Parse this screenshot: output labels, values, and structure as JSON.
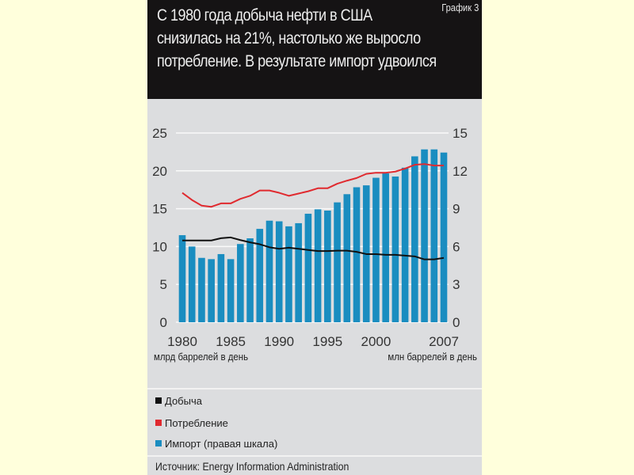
{
  "header": {
    "chart_number": "График 3",
    "title_lines": [
      "С 1980 года добыча нефти в США",
      "снизилась на 21%, настолько же выросло",
      "потребление. В результате импорт удвоился"
    ]
  },
  "units": {
    "left": "млрд баррелей в день",
    "right": "млн баррелей в день"
  },
  "legend": [
    {
      "label": "Добыча",
      "color": "#111111"
    },
    {
      "label": "Потребление",
      "color": "#E02A2F"
    },
    {
      "label": "Импорт (правая шкала)",
      "color": "#1A8DC0"
    }
  ],
  "source": "Источник: Energy Information Administration",
  "chart_data": {
    "type": "bar+line",
    "title": "С 1980 года добыча нефти в США снизилась на 21%, настолько же выросло потребление. В результате импорт удвоился",
    "x": [
      1980,
      1981,
      1982,
      1983,
      1984,
      1985,
      1986,
      1987,
      1988,
      1989,
      1990,
      1991,
      1992,
      1993,
      1994,
      1995,
      1996,
      1997,
      1998,
      1999,
      2000,
      2001,
      2002,
      2003,
      2004,
      2005,
      2006,
      2007
    ],
    "x_tick_labels": [
      "1980",
      "1985",
      "1990",
      "1995",
      "2000",
      "2007"
    ],
    "x_tick_values": [
      1980,
      1985,
      1990,
      1995,
      2000,
      2007
    ],
    "left_axis": {
      "label": "млрд баррелей в день",
      "ylim": [
        0,
        25
      ],
      "ticks": [
        "0",
        "5",
        "10",
        "15",
        "20",
        "25"
      ]
    },
    "right_axis": {
      "label": "млн баррелей в день",
      "ylim": [
        0,
        15
      ],
      "ticks": [
        "0",
        "3",
        "6",
        "9",
        "12",
        "15"
      ]
    },
    "grid": true,
    "legend_position": "bottom",
    "series": [
      {
        "name": "Добыча",
        "type": "line",
        "axis": "left",
        "color": "#111111",
        "values": [
          10.8,
          10.8,
          10.8,
          10.8,
          11.1,
          11.2,
          10.85,
          10.55,
          10.3,
          9.9,
          9.7,
          9.85,
          9.7,
          9.55,
          9.4,
          9.4,
          9.45,
          9.45,
          9.3,
          9.0,
          9.0,
          8.9,
          8.9,
          8.8,
          8.7,
          8.3,
          8.3,
          8.5
        ]
      },
      {
        "name": "Потребление",
        "type": "line",
        "axis": "left",
        "color": "#E02A2F",
        "values": [
          17.1,
          16.15,
          15.4,
          15.25,
          15.7,
          15.7,
          16.3,
          16.7,
          17.4,
          17.4,
          17.1,
          16.7,
          17.0,
          17.3,
          17.7,
          17.7,
          18.3,
          18.7,
          19.05,
          19.6,
          19.75,
          19.75,
          19.9,
          20.3,
          20.8,
          20.9,
          20.7,
          20.7
        ]
      },
      {
        "name": "Импорт (правая шкала)",
        "type": "bar",
        "axis": "right",
        "color": "#1A8DC0",
        "values": [
          6.9,
          6.0,
          5.1,
          5.0,
          5.4,
          5.0,
          6.2,
          6.65,
          7.4,
          8.05,
          8.0,
          7.6,
          7.85,
          8.6,
          8.95,
          8.85,
          9.5,
          10.15,
          10.7,
          10.85,
          11.45,
          11.8,
          11.55,
          12.25,
          13.15,
          13.7,
          13.7,
          13.45
        ]
      }
    ]
  }
}
